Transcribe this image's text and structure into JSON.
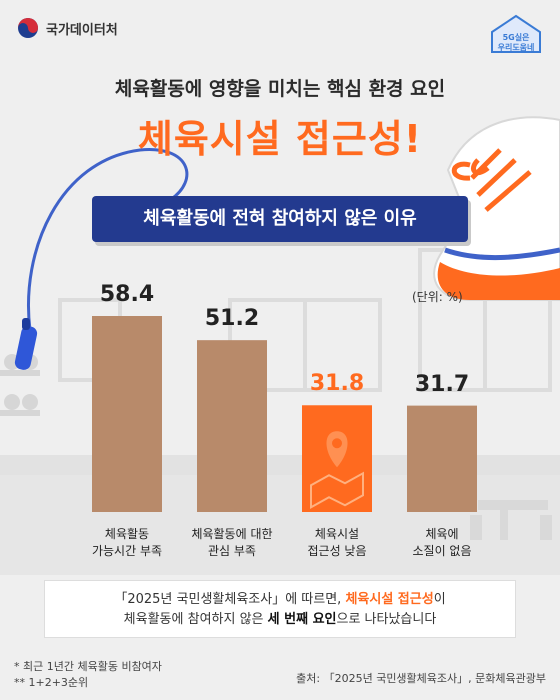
{
  "header": {
    "logo_label": "국가데이터처",
    "badge_line1": "5G실은",
    "badge_line2": "우리도움네"
  },
  "titles": {
    "subtitle": "체육활동에 영향을 미치는 핵심 환경 요인",
    "headline": "체육시설 접근성!",
    "banner": "체육활동에 전혀 참여하지 않은 이유"
  },
  "chart_data": {
    "type": "bar",
    "title": "체육활동에 전혀 참여하지 않은 이유",
    "unit_label": "(단위: %)",
    "categories": [
      "체육활동\n가능시간 부족",
      "체육활동에 대한\n관심 부족",
      "체육시설\n접근성 낮음",
      "체육에\n소질이 없음"
    ],
    "values": [
      58.4,
      51.2,
      31.8,
      31.7
    ],
    "value_labels": [
      "58.4",
      "51.2",
      "31.8",
      "31.7"
    ],
    "highlight_index": 2,
    "colors": {
      "bar": "#b88a6a",
      "highlight": "#ff6a1f"
    },
    "ylim": [
      0,
      58.4
    ]
  },
  "summary": {
    "line1_a": "「2025년 국민생활체육조사」에 따르면, ",
    "line1_b": "체육시설 접근성",
    "line1_c": "이",
    "line2_a": "체육활동에 참여하지 않은 ",
    "line2_b": "세 번째 요인",
    "line2_c": "으로 나타났습니다"
  },
  "footnotes": {
    "note1": "* 최근 1년간 체육활동 비참여자",
    "note2": "** 1+2+3순위",
    "source": "출처: 「2025년 국민생활체육조사」, 문화체육관광부"
  }
}
